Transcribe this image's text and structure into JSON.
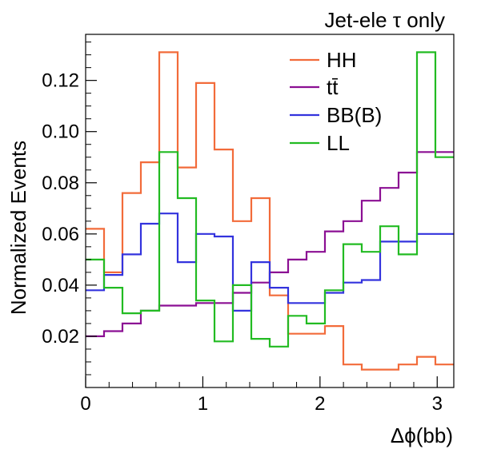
{
  "chart_data": {
    "type": "line",
    "title": "Jet-ele τ only",
    "xlabel": "Δϕ(bb)",
    "ylabel": "Normalized Events",
    "xlim": [
      0,
      3.1416
    ],
    "ylim": [
      0.0,
      0.138
    ],
    "x_ticks": [
      "0",
      "1",
      "2",
      "3"
    ],
    "y_ticks": [
      "0.02",
      "0.04",
      "0.06",
      "0.08",
      "0.10",
      "0.12"
    ],
    "legend_position": "top-right",
    "grid": false,
    "bin_edges": [
      0,
      0.1571,
      0.3142,
      0.4712,
      0.6283,
      0.7854,
      0.9425,
      1.0996,
      1.2566,
      1.4137,
      1.5708,
      1.7279,
      1.885,
      2.042,
      2.1991,
      2.3562,
      2.5133,
      2.6704,
      2.8274,
      2.9845,
      3.1416
    ],
    "series": [
      {
        "name": "HH",
        "color": "#f26b3a",
        "values": [
          0.062,
          0.045,
          0.076,
          0.088,
          0.131,
          0.086,
          0.119,
          0.093,
          0.065,
          0.074,
          0.036,
          0.021,
          0.021,
          0.024,
          0.009,
          0.007,
          0.007,
          0.009,
          0.012,
          0.009
        ]
      },
      {
        "name": "tt̄",
        "color": "#8b0f93",
        "values": [
          0.02,
          0.022,
          0.025,
          0.03,
          0.032,
          0.032,
          0.033,
          0.033,
          0.037,
          0.041,
          0.045,
          0.05,
          0.053,
          0.061,
          0.065,
          0.073,
          0.078,
          0.084,
          0.092,
          0.092
        ]
      },
      {
        "name": "BB(B)",
        "color": "#3333dd",
        "values": [
          0.038,
          0.044,
          0.052,
          0.064,
          0.068,
          0.049,
          0.06,
          0.059,
          0.03,
          0.049,
          0.039,
          0.033,
          0.033,
          0.037,
          0.041,
          0.042,
          0.057,
          0.057,
          0.06,
          0.06
        ]
      },
      {
        "name": "LL",
        "color": "#22bb22",
        "values": [
          0.05,
          0.039,
          0.029,
          0.03,
          0.092,
          0.074,
          0.034,
          0.018,
          0.04,
          0.019,
          0.016,
          0.028,
          0.025,
          0.038,
          0.056,
          0.053,
          0.063,
          0.052,
          0.131,
          0.09
        ]
      }
    ]
  }
}
